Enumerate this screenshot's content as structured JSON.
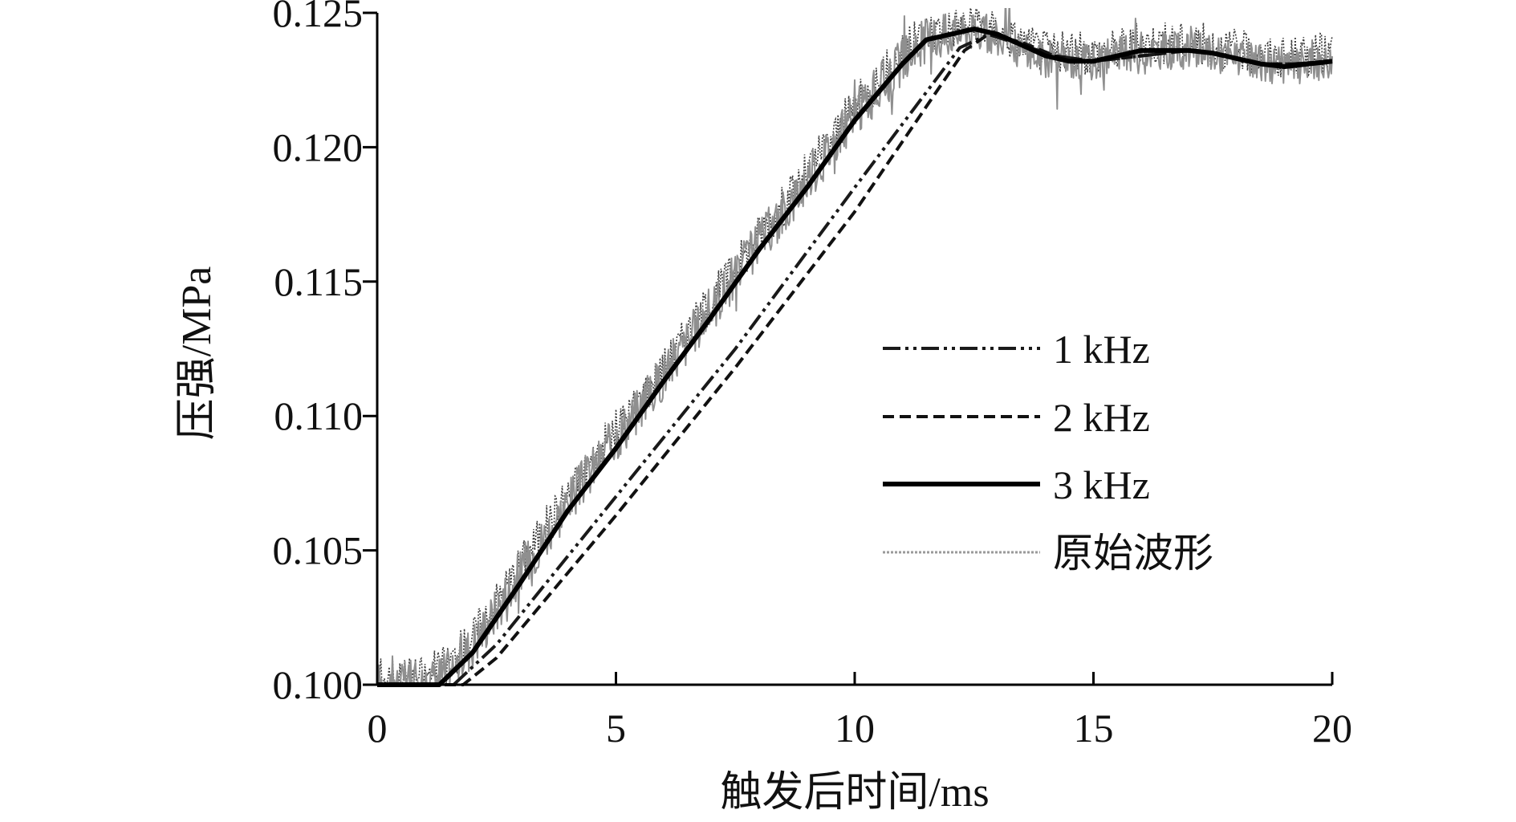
{
  "chart_data": {
    "type": "line",
    "title": "",
    "xlabel": "触发后时间/ms",
    "ylabel": "压强/MPa",
    "xlim": [
      0,
      20
    ],
    "ylim": [
      0.1,
      0.125
    ],
    "xticks": [
      "0",
      "5",
      "10",
      "15",
      "20"
    ],
    "yticks": [
      "0.100",
      "0.105",
      "0.110",
      "0.115",
      "0.120",
      "0.125"
    ],
    "grid": false,
    "legend_position": "center-right",
    "series": [
      {
        "name": "1 kHz",
        "style": "dash-dot-dot",
        "color": "#1a1a1a",
        "x": [
          0,
          1.6,
          2.5,
          5,
          7.5,
          10,
          12.2,
          12.8,
          13.5,
          14.2,
          15,
          16,
          17,
          17.8,
          18.5,
          19.2,
          20
        ],
        "y": [
          0.1,
          0.1,
          0.1015,
          0.107,
          0.1125,
          0.1185,
          0.1237,
          0.1242,
          0.1238,
          0.1234,
          0.1232,
          0.1234,
          0.1236,
          0.1234,
          0.1231,
          0.1231,
          0.1232
        ]
      },
      {
        "name": "2 kHz",
        "style": "dashed",
        "color": "#111111",
        "x": [
          0,
          1.8,
          2.5,
          5,
          7.5,
          10,
          12.3,
          12.8,
          13.5,
          14.2,
          15,
          16,
          17,
          17.8,
          18.5,
          19.2,
          20
        ],
        "y": [
          0.1,
          0.1,
          0.101,
          0.1063,
          0.1118,
          0.1176,
          0.1236,
          0.1242,
          0.1239,
          0.1234,
          0.1232,
          0.1234,
          0.1236,
          0.1234,
          0.1231,
          0.1231,
          0.1232
        ]
      },
      {
        "name": "3 kHz",
        "style": "solid",
        "color": "#000000",
        "x": [
          0,
          1.3,
          2,
          3,
          4,
          5,
          6,
          7,
          8,
          9,
          10,
          11,
          11.5,
          12,
          12.5,
          13,
          13.5,
          14,
          14.5,
          15,
          15.5,
          16,
          16.5,
          17,
          17.5,
          18,
          18.5,
          19,
          19.5,
          20
        ],
        "y": [
          0.1,
          0.1,
          0.1012,
          0.1038,
          0.1065,
          0.1088,
          0.1113,
          0.1137,
          0.1162,
          0.1185,
          0.121,
          0.1231,
          0.124,
          0.1242,
          0.1244,
          0.1242,
          0.1238,
          0.1234,
          0.1232,
          0.1232,
          0.1234,
          0.1236,
          0.1236,
          0.1236,
          0.1235,
          0.1233,
          0.1231,
          0.123,
          0.1231,
          0.1232
        ]
      },
      {
        "name": "原始波形",
        "style": "noisy",
        "color": "#8f8f8f",
        "x": [
          0,
          1,
          1.5,
          2,
          2.5,
          3,
          3.5,
          4,
          4.5,
          5,
          5.5,
          6,
          6.5,
          7,
          7.5,
          8,
          8.5,
          9,
          9.5,
          10,
          10.5,
          11,
          11.5,
          12,
          12.5,
          13,
          13.5,
          14,
          14.5,
          15,
          15.5,
          16,
          16.5,
          17,
          17.5,
          18,
          18.5,
          19,
          19.5,
          20
        ],
        "y": [
          0.1,
          0.1,
          0.1005,
          0.1015,
          0.1028,
          0.1042,
          0.1055,
          0.1068,
          0.108,
          0.1092,
          0.1103,
          0.1115,
          0.1128,
          0.114,
          0.1152,
          0.1165,
          0.1175,
          0.1188,
          0.12,
          0.1212,
          0.1222,
          0.1232,
          0.124,
          0.1242,
          0.1243,
          0.124,
          0.1236,
          0.1233,
          0.1232,
          0.1232,
          0.1234,
          0.1236,
          0.1236,
          0.1236,
          0.1235,
          0.1233,
          0.1231,
          0.123,
          0.1231,
          0.1232
        ]
      }
    ]
  }
}
